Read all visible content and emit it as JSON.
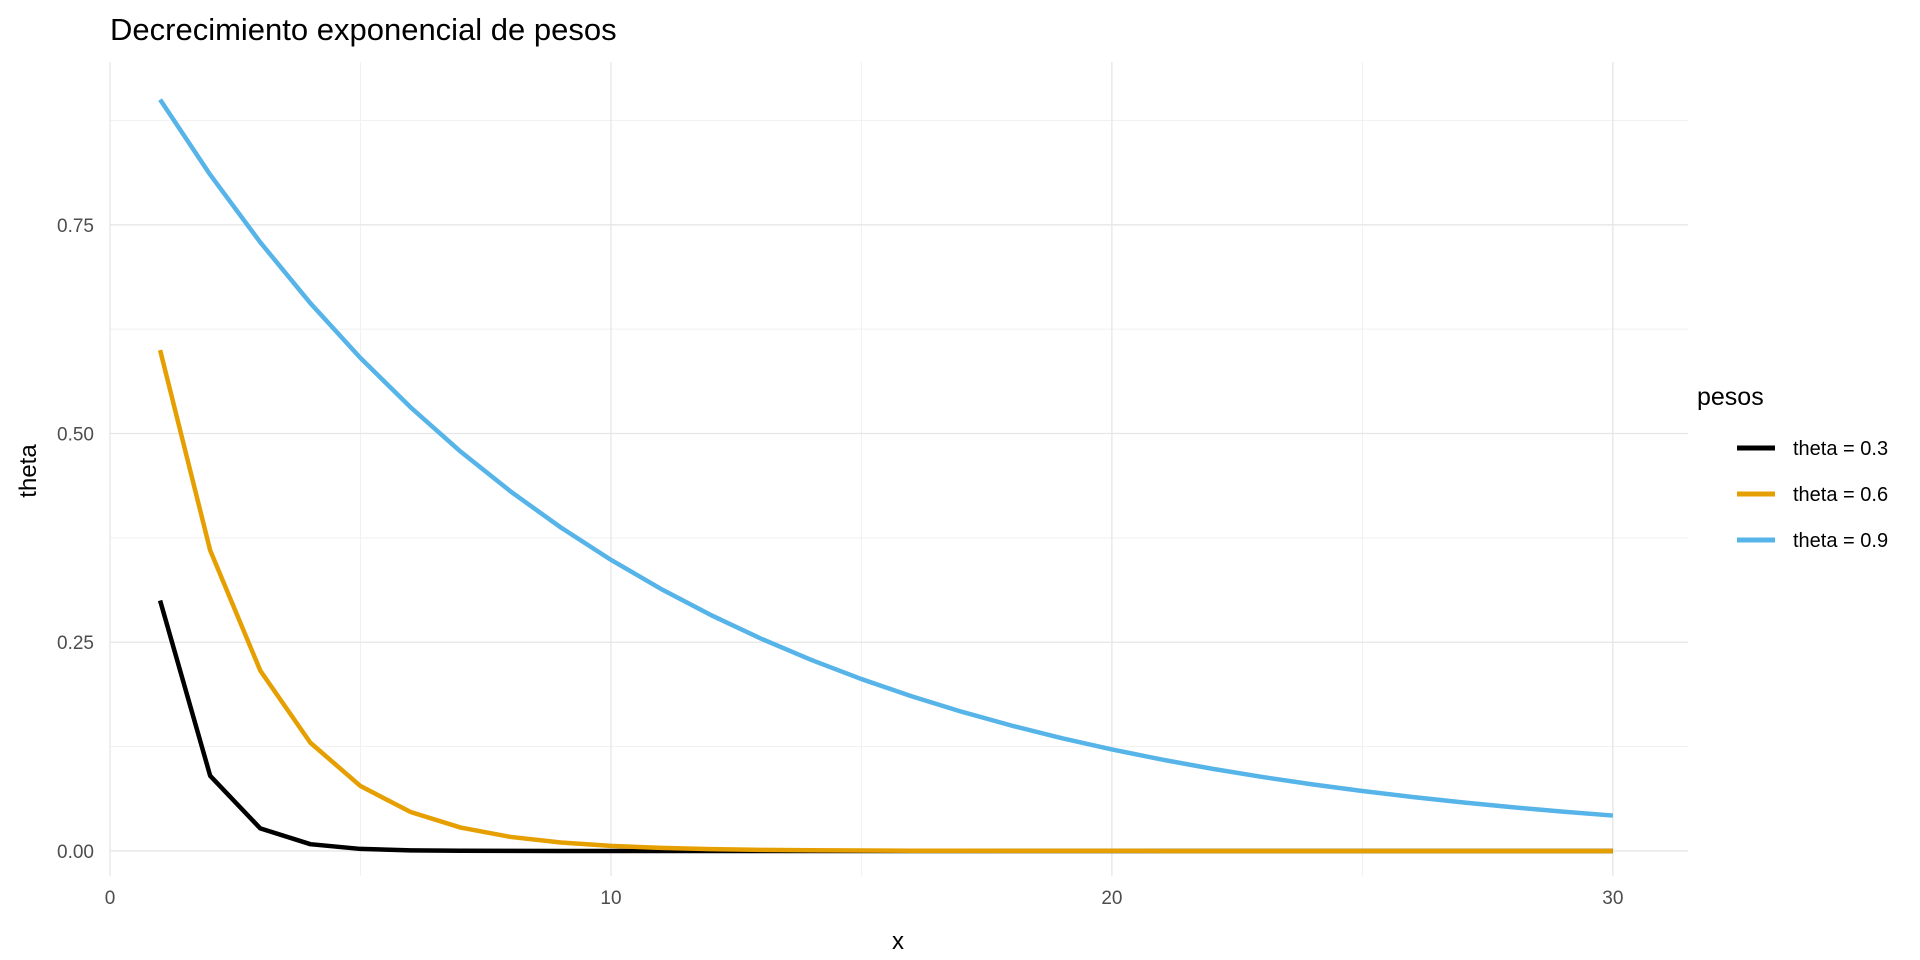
{
  "chart_data": {
    "type": "line",
    "title": "Decrecimiento exponencial de pesos",
    "xlabel": "x",
    "ylabel": "theta",
    "xlim": [
      0,
      31.5
    ],
    "ylim": [
      -0.03,
      0.945
    ],
    "x_ticks": [
      0,
      10,
      20,
      30
    ],
    "x_tick_labels": [
      "0",
      "10",
      "20",
      "30"
    ],
    "y_ticks": [
      0,
      0.25,
      0.5,
      0.75
    ],
    "y_tick_labels": [
      "0.00",
      "0.25",
      "0.50",
      "0.75"
    ],
    "grid": true,
    "legend": {
      "title": "pesos",
      "position": "right"
    },
    "x": [
      1,
      2,
      3,
      4,
      5,
      6,
      7,
      8,
      9,
      10,
      11,
      12,
      13,
      14,
      15,
      16,
      17,
      18,
      19,
      20,
      21,
      22,
      23,
      24,
      25,
      26,
      27,
      28,
      29,
      30
    ],
    "series": [
      {
        "name": "theta = 0.3",
        "color": "#000000",
        "values": [
          0.3,
          0.09,
          0.027,
          0.0081,
          0.00243,
          0.000729,
          0.000219,
          6.56e-05,
          1.97e-05,
          5.9e-06,
          1.8e-06,
          5e-07,
          2e-07,
          0,
          0,
          0,
          0,
          0,
          0,
          0,
          0,
          0,
          0,
          0,
          0,
          0,
          0,
          0,
          0,
          0
        ]
      },
      {
        "name": "theta = 0.6",
        "color": "#E69F00",
        "values": [
          0.6,
          0.36,
          0.216,
          0.1296,
          0.07776,
          0.046656,
          0.027994,
          0.016796,
          0.010078,
          0.006047,
          0.003628,
          0.002177,
          0.001306,
          0.000784,
          0.00047,
          0.000282,
          0.000169,
          0.000102,
          6.1e-05,
          3.7e-05,
          2.2e-05,
          1.3e-05,
          8e-06,
          5e-06,
          3e-06,
          2e-06,
          1e-06,
          1e-06,
          0,
          0
        ]
      },
      {
        "name": "theta = 0.9",
        "color": "#56B4E9",
        "values": [
          0.9,
          0.81,
          0.729,
          0.6561,
          0.59049,
          0.531441,
          0.478297,
          0.430467,
          0.38742,
          0.348678,
          0.313811,
          0.28243,
          0.254187,
          0.228768,
          0.205891,
          0.185302,
          0.166772,
          0.150095,
          0.135085,
          0.121577,
          0.109419,
          0.098477,
          0.088629,
          0.079766,
          0.07179,
          0.064611,
          0.05815,
          0.052335,
          0.047101,
          0.042391
        ]
      }
    ]
  }
}
